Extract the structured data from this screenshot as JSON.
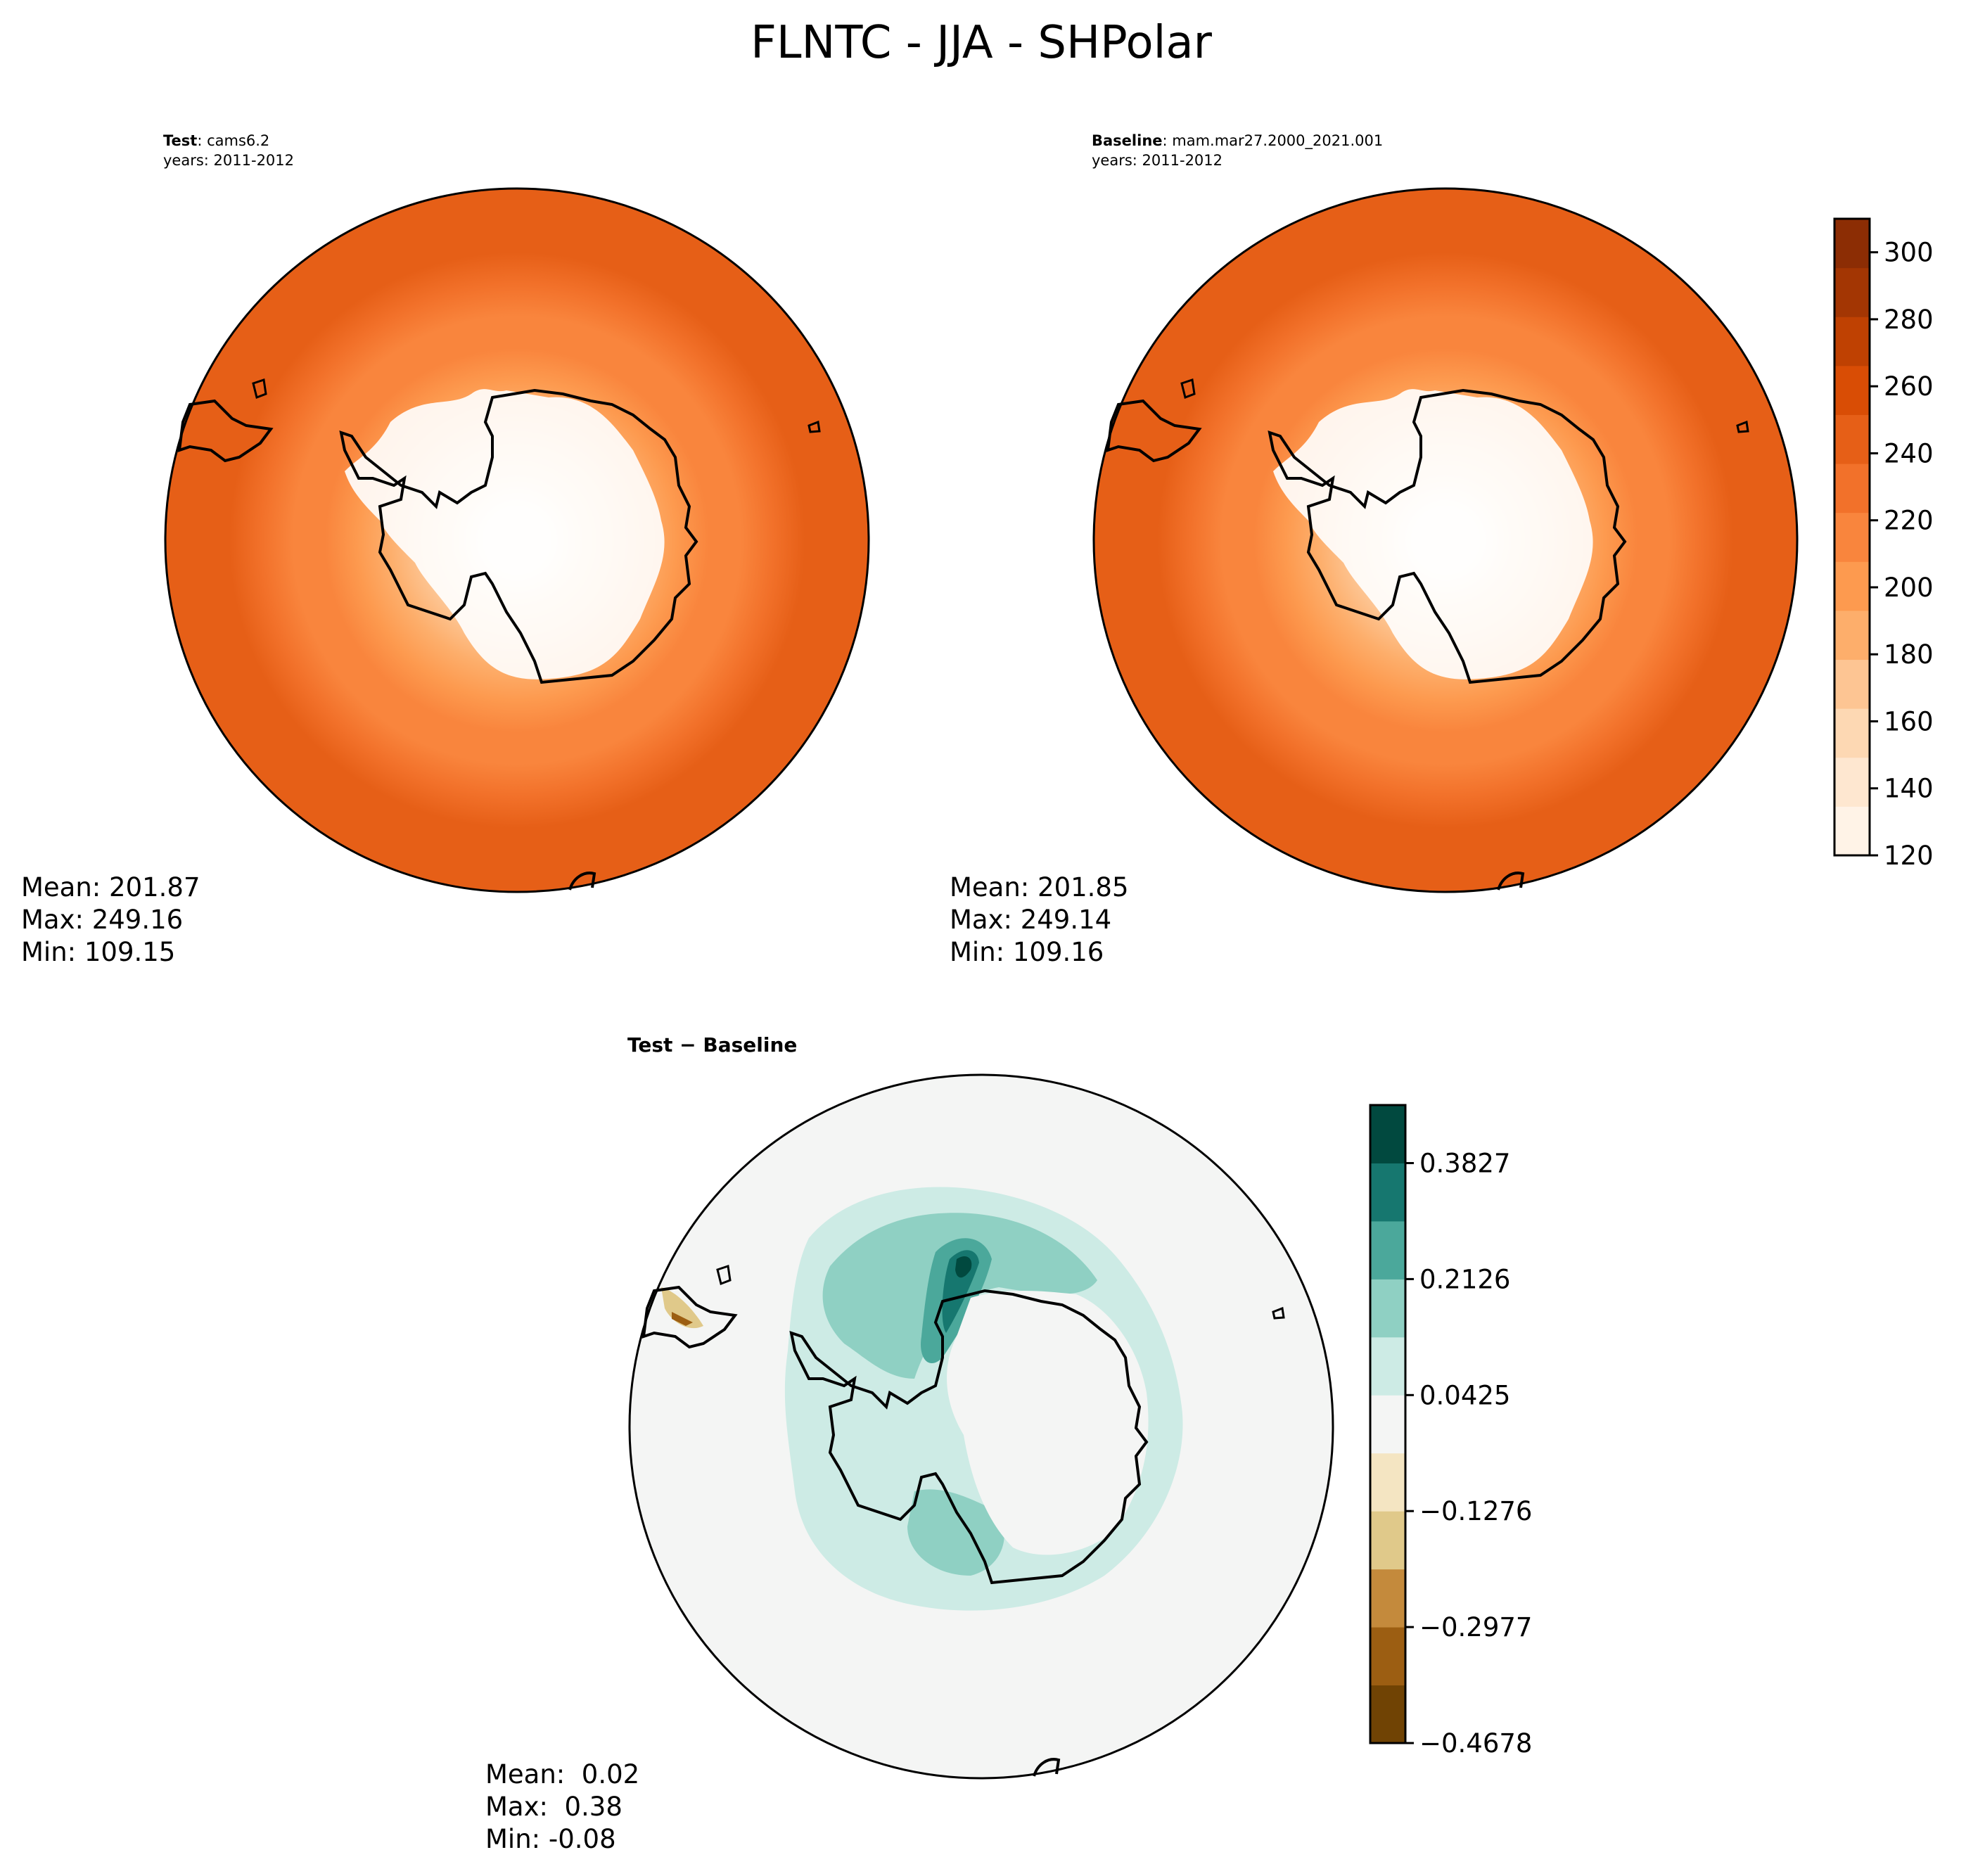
{
  "figure": {
    "title": "FLNTC - JJA - SHPolar"
  },
  "chart_data": [
    {
      "type": "heatmap",
      "projection": "south-polar-stereographic",
      "panel_title_bold": "Test",
      "panel_title_rest": ": cams6.2",
      "panel_subtitle": "years: 2011-2012",
      "colormap": "Oranges",
      "radial_profile": {
        "from_pole_to_edge": [
          110,
          130,
          150,
          170,
          185,
          200,
          212,
          222,
          232,
          240,
          245,
          249
        ]
      },
      "stats": {
        "mean": "Mean: 201.87",
        "max": "Max: 249.16",
        "min": "Min: 109.15"
      }
    },
    {
      "type": "heatmap",
      "projection": "south-polar-stereographic",
      "panel_title_bold": "Baseline",
      "panel_title_rest": ": mam.mar27.2000_2021.001",
      "panel_subtitle": "years: 2011-2012",
      "colormap": "Oranges",
      "radial_profile": {
        "from_pole_to_edge": [
          110,
          130,
          150,
          170,
          185,
          200,
          212,
          222,
          232,
          240,
          245,
          249
        ]
      },
      "stats": {
        "mean": "Mean: 201.85",
        "max": "Max: 249.14",
        "min": "Min: 109.16"
      }
    },
    {
      "type": "heatmap",
      "projection": "south-polar-stereographic",
      "panel_title_bold": "Test − Baseline",
      "colormap": "BrBG",
      "stats": {
        "mean": "Mean:  0.02",
        "max": "Max:  0.38",
        "min": "Min: -0.08"
      }
    }
  ],
  "colorbars": {
    "absolute": {
      "range": [
        120,
        310
      ],
      "tick_labels": [
        "120",
        "140",
        "160",
        "180",
        "200",
        "220",
        "240",
        "260",
        "280",
        "300"
      ],
      "colors": [
        "#fff3e7",
        "#fee7d0",
        "#fdd8b3",
        "#fdc593",
        "#fdae6b",
        "#fd9a4f",
        "#f9853d",
        "#f2712a",
        "#e65f17",
        "#d94d05",
        "#bf4102",
        "#a33603",
        "#8c2d04"
      ]
    },
    "difference": {
      "range": [
        -0.4678,
        0.4678
      ],
      "tick_labels": [
        "0.3827",
        "0.2126",
        "0.0425",
        "−0.1276",
        "−0.2977",
        "−0.4678"
      ],
      "tick_values": [
        0.3827,
        0.2126,
        0.0425,
        -0.1276,
        -0.2977,
        -0.4678
      ],
      "colors": [
        "#704304",
        "#9c5e12",
        "#c48a3c",
        "#e0c98a",
        "#f4e5c2",
        "#f4f5f4",
        "#cdebe5",
        "#8fd0c3",
        "#4ba89b",
        "#16776f",
        "#01493f"
      ]
    }
  }
}
